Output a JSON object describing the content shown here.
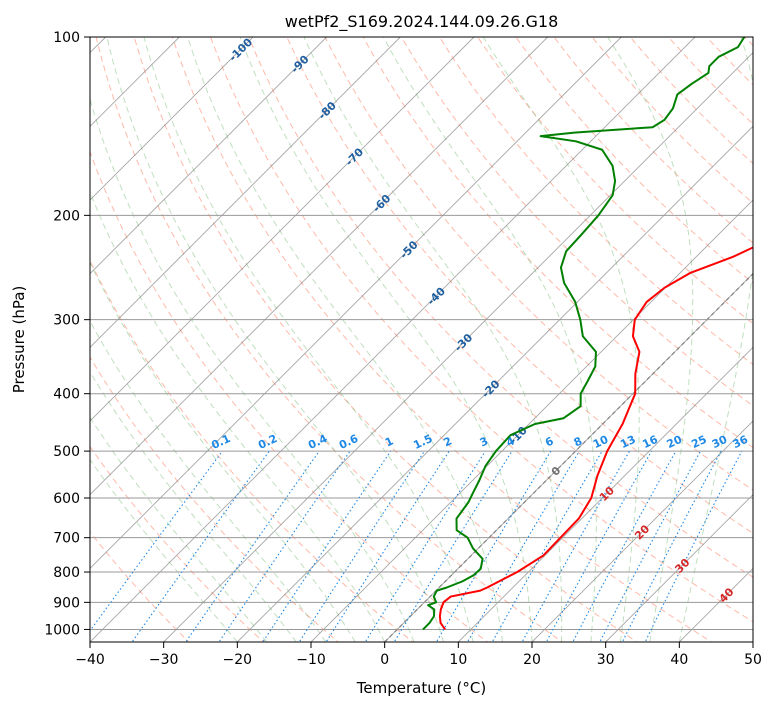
{
  "chart_data": {
    "type": "line",
    "subtype": "skew-t log-p",
    "title": "wetPf2_S169.2024.144.09.26.G18",
    "xlabel": "Temperature (°C)",
    "ylabel": "Pressure (hPa)",
    "xlim": [
      -40,
      50
    ],
    "ylim": [
      1050,
      100
    ],
    "y_scale": "log",
    "grid": true,
    "x_ticks": [
      -40,
      -30,
      -20,
      -10,
      0,
      10,
      20,
      30,
      40,
      50
    ],
    "x_tick_labels": [
      "−40",
      "−30",
      "−20",
      "−10",
      "0",
      "10",
      "20",
      "30",
      "40",
      "50"
    ],
    "y_ticks": [
      1000,
      900,
      800,
      700,
      600,
      500,
      400,
      300,
      200,
      100
    ],
    "y_tick_labels": [
      "1000",
      "900",
      "800",
      "700",
      "600",
      "500",
      "400",
      "300",
      "200",
      "100"
    ],
    "colors": {
      "temperature": "#ff0000",
      "dewpoint": "#008000",
      "isotherm": "#808080",
      "dry_adiabat": "#ff8060",
      "moist_adiabat": "#80c080",
      "mixing_ratio": "#1e88e5",
      "freezing_level": "#808080"
    },
    "series": [
      {
        "key": "temperature",
        "points": [
          [
            1000,
            6.5
          ],
          [
            975,
            5.0
          ],
          [
            950,
            4.0
          ],
          [
            925,
            3.2
          ],
          [
            900,
            2.6
          ],
          [
            880,
            2.8
          ],
          [
            860,
            6.0
          ],
          [
            850,
            6.5
          ],
          [
            800,
            8.5
          ],
          [
            750,
            9.8
          ],
          [
            700,
            9.7
          ],
          [
            650,
            9.6
          ],
          [
            600,
            8.5
          ],
          [
            550,
            6.3
          ],
          [
            500,
            4.3
          ],
          [
            450,
            2.7
          ],
          [
            400,
            0.3
          ],
          [
            370,
            -2.4
          ],
          [
            340,
            -4.8
          ],
          [
            320,
            -7.8
          ],
          [
            300,
            -9.8
          ],
          [
            280,
            -10.6
          ],
          [
            265,
            -10.1
          ],
          [
            250,
            -8.6
          ],
          [
            235,
            -5.0
          ],
          [
            220,
            -2.4
          ],
          [
            200,
            -0.6
          ],
          [
            180,
            1.0
          ],
          [
            160,
            3.0
          ],
          [
            150,
            5.3
          ],
          [
            140,
            5.5
          ],
          [
            135,
            6.5
          ],
          [
            120,
            9.0
          ],
          [
            110,
            11.0
          ],
          [
            100,
            13.0
          ]
        ]
      },
      {
        "key": "dewpoint",
        "points": [
          [
            1000,
            3.5
          ],
          [
            975,
            3.5
          ],
          [
            950,
            3.2
          ],
          [
            925,
            2.3
          ],
          [
            910,
            0.9
          ],
          [
            900,
            1.6
          ],
          [
            880,
            0.5
          ],
          [
            860,
            0.1
          ],
          [
            850,
            1.0
          ],
          [
            830,
            2.3
          ],
          [
            810,
            3.0
          ],
          [
            790,
            3.1
          ],
          [
            760,
            2.0
          ],
          [
            730,
            -0.7
          ],
          [
            700,
            -2.9
          ],
          [
            680,
            -5.4
          ],
          [
            650,
            -7.0
          ],
          [
            610,
            -7.6
          ],
          [
            590,
            -8.2
          ],
          [
            560,
            -9.1
          ],
          [
            530,
            -10.2
          ],
          [
            500,
            -10.8
          ],
          [
            470,
            -11.0
          ],
          [
            450,
            -9.2
          ],
          [
            440,
            -6.1
          ],
          [
            420,
            -5.4
          ],
          [
            400,
            -7.1
          ],
          [
            380,
            -7.9
          ],
          [
            360,
            -8.8
          ],
          [
            340,
            -10.7
          ],
          [
            320,
            -14.6
          ],
          [
            300,
            -17.2
          ],
          [
            280,
            -20.3
          ],
          [
            260,
            -24.4
          ],
          [
            245,
            -26.9
          ],
          [
            230,
            -28.4
          ],
          [
            215,
            -28.6
          ],
          [
            200,
            -28.9
          ],
          [
            185,
            -29.7
          ],
          [
            175,
            -31.3
          ],
          [
            165,
            -33.7
          ],
          [
            155,
            -37.3
          ],
          [
            150,
            -42.0
          ],
          [
            147,
            -47.5
          ],
          [
            145,
            -43.4
          ],
          [
            142,
            -33.5
          ],
          [
            138,
            -32.9
          ],
          [
            132,
            -33.3
          ],
          [
            125,
            -34.6
          ],
          [
            120,
            -34.1
          ],
          [
            115,
            -33.3
          ],
          [
            112,
            -34.1
          ],
          [
            108,
            -34.1
          ],
          [
            104,
            -32.8
          ],
          [
            100,
            -33.3
          ]
        ]
      }
    ],
    "isotherm_labels": [
      "-100",
      "-90",
      "-80",
      "-70",
      "-60",
      "-50",
      "-40",
      "-30",
      "-20",
      "-10",
      "0",
      "10",
      "20",
      "30",
      "40"
    ],
    "isotherm_label_values": [
      -100,
      -90,
      -80,
      -70,
      -60,
      -50,
      -40,
      -30,
      -20,
      -10,
      0,
      10,
      20,
      30,
      40
    ],
    "mixing_ratio_labels": [
      "0.1",
      "0.2",
      "0.4",
      "0.6",
      "1",
      "1.5",
      "2",
      "3",
      "4",
      "6",
      "8",
      "10",
      "13",
      "16",
      "20",
      "25",
      "30",
      "36"
    ],
    "mixing_ratio_values": [
      0.1,
      0.2,
      0.4,
      0.6,
      1,
      1.5,
      2,
      3,
      4,
      6,
      8,
      10,
      13,
      16,
      20,
      25,
      30,
      36
    ]
  }
}
